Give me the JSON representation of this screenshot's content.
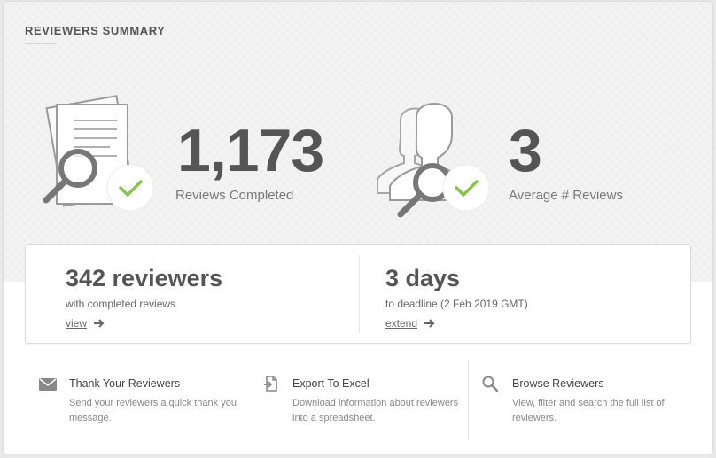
{
  "header": {
    "title": "REVIEWERS SUMMARY"
  },
  "stats": {
    "reviews_completed": {
      "value": "1,173",
      "label": "Reviews Completed",
      "icon": "document-search-check-icon"
    },
    "average_reviews": {
      "value": "3",
      "label": "Average # Reviews",
      "icon": "people-search-check-icon"
    }
  },
  "summary": {
    "reviewers": {
      "value": "342 reviewers",
      "sub": "with completed reviews",
      "link": "view"
    },
    "deadline": {
      "value": "3 days",
      "sub": "to deadline (2 Feb 2019 GMT)",
      "link": "extend"
    }
  },
  "actions": [
    {
      "icon": "envelope-icon",
      "title": "Thank Your Reviewers",
      "desc": "Send your reviewers a quick thank you message."
    },
    {
      "icon": "export-file-icon",
      "title": "Export To Excel",
      "desc": "Download information about reviewers into a spreadsheet."
    },
    {
      "icon": "search-icon",
      "title": "Browse Reviewers",
      "desc": "View, filter and search the full list of reviewers."
    }
  ],
  "colors": {
    "accent_check": "#8bc34a",
    "text_dark": "#555555",
    "icon_gray": "#7a7a7a"
  }
}
